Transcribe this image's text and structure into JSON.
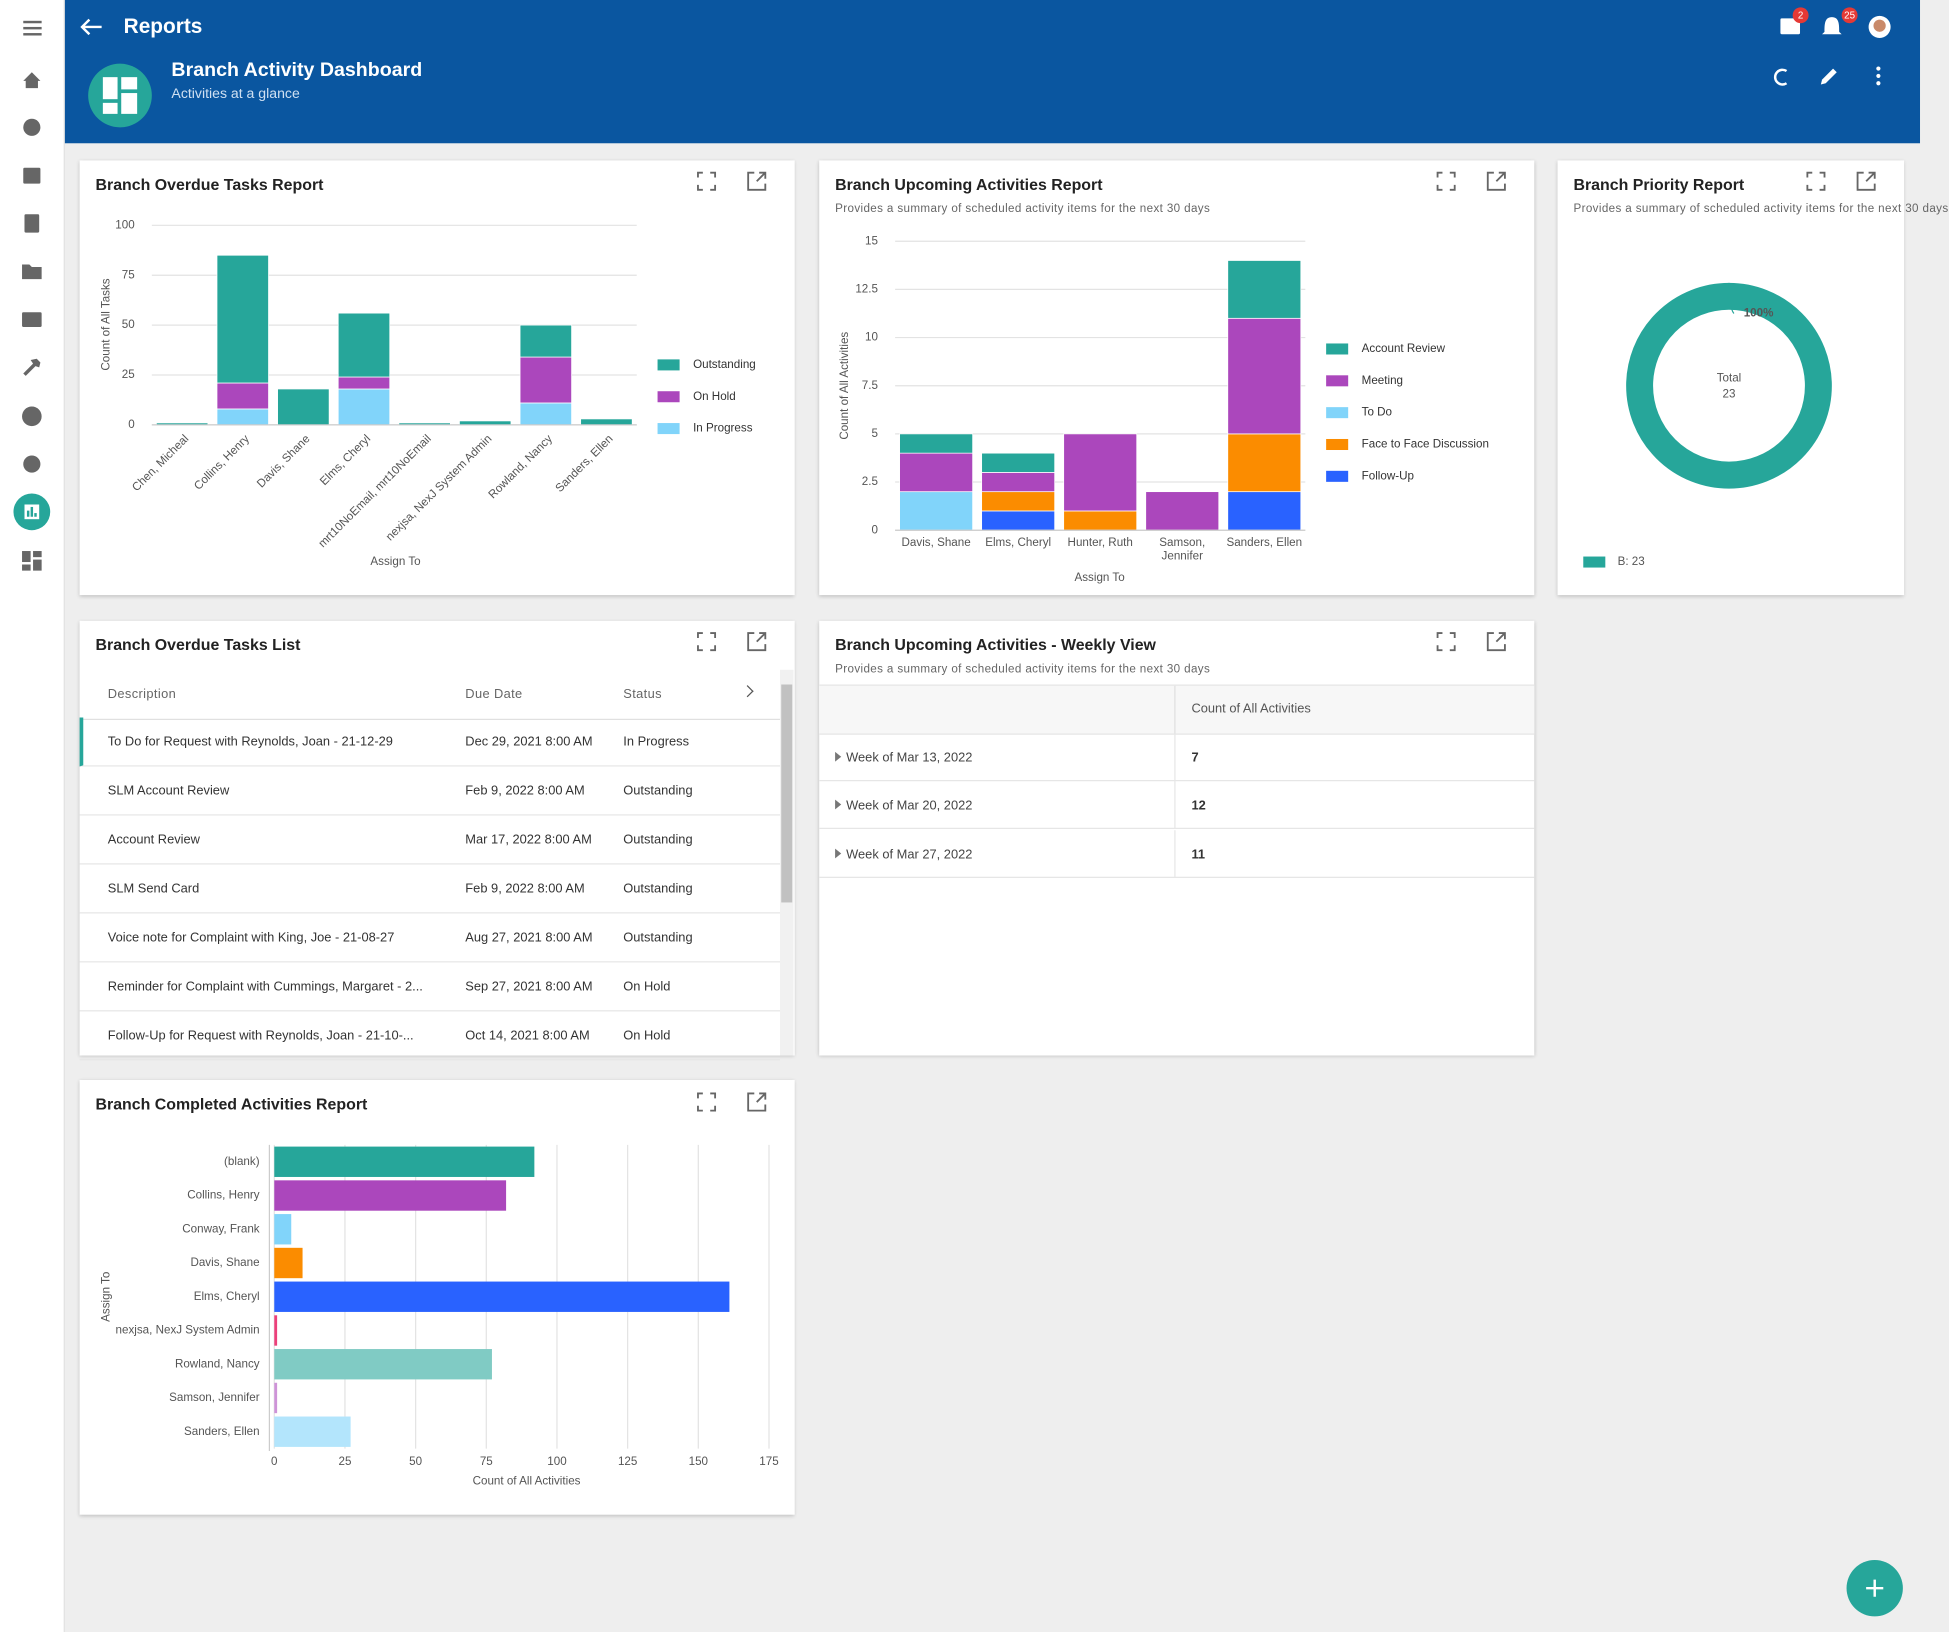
{
  "app": {
    "title": "Reports",
    "badges": {
      "messages": 2,
      "notifications": 25
    }
  },
  "dashboard": {
    "title": "Branch Activity Dashboard",
    "subtitle": "Activities at a glance"
  },
  "chart_data": [
    {
      "type": "bar",
      "stacked": true,
      "title": "Branch Overdue Tasks Report",
      "ylabel": "Count of All Tasks",
      "xlabel": "Assign To",
      "categories": [
        "Chen, Micheal",
        "Collins, Henry",
        "Davis, Shane",
        "Elms, Cheryl",
        "mrt10NoEmail, mrt10NoEmail",
        "nexjsa, NexJ System Admin",
        "Rowland, Nancy",
        "Sanders, Ellen"
      ],
      "series": [
        {
          "name": "Outstanding",
          "color": "#26a69a",
          "values": [
            1,
            64,
            18,
            32,
            1,
            2,
            16,
            3
          ]
        },
        {
          "name": "On Hold",
          "color": "#ab47bc",
          "values": [
            0,
            13,
            0,
            6,
            0,
            0,
            23,
            0
          ]
        },
        {
          "name": "In Progress",
          "color": "#81d4fa",
          "values": [
            0,
            8,
            0,
            18,
            0,
            0,
            11,
            0
          ]
        }
      ],
      "ylim": [
        0,
        100
      ],
      "yticks": [
        0,
        25,
        50,
        75,
        100
      ],
      "grid": true,
      "legend": "right"
    },
    {
      "type": "bar",
      "stacked": true,
      "title": "Branch Upcoming Activities Report",
      "subtitle": "Provides a summary of scheduled activity items for the next 30 days",
      "ylabel": "Count of All Activities",
      "xlabel": "Assign To",
      "categories": [
        "Davis, Shane",
        "Elms, Cheryl",
        "Hunter, Ruth",
        "Samson, Jennifer",
        "Sanders, Ellen"
      ],
      "series": [
        {
          "name": "Account Review",
          "color": "#26a69a",
          "values": [
            1,
            1,
            0,
            0,
            3
          ]
        },
        {
          "name": "Meeting",
          "color": "#ab47bc",
          "values": [
            2,
            1,
            4,
            2,
            6
          ]
        },
        {
          "name": "To Do",
          "color": "#81d4fa",
          "values": [
            2,
            0,
            0,
            0,
            0
          ]
        },
        {
          "name": "Face to Face Discussion",
          "color": "#fb8c00",
          "values": [
            0,
            1,
            1,
            0,
            3
          ]
        },
        {
          "name": "Follow-Up",
          "color": "#2962ff",
          "values": [
            0,
            1,
            0,
            0,
            2
          ]
        }
      ],
      "ylim": [
        0,
        15
      ],
      "yticks": [
        0,
        2.5,
        5,
        7.5,
        10,
        12.5,
        15
      ],
      "grid": true,
      "legend": "right"
    },
    {
      "type": "pie",
      "donut": true,
      "title": "Branch Priority Report",
      "subtitle": "Provides a summary of scheduled activity items for the next 30 days",
      "center_label": "Total",
      "total": 23,
      "categories": [
        "B"
      ],
      "values": [
        23
      ],
      "colors": [
        "#26a69a"
      ],
      "shares": [
        100
      ],
      "share_labels": [
        "100%"
      ],
      "legend_labels": [
        "B: 23"
      ],
      "legend": "bottom-left"
    },
    {
      "type": "bar",
      "orientation": "horizontal",
      "title": "Branch Completed Activities Report",
      "xlabel": "Count of All Activities",
      "ylabel": "Assign To",
      "categories": [
        "(blank)",
        "Collins, Henry",
        "Conway, Frank",
        "Davis, Shane",
        "Elms, Cheryl",
        "nexjsa, NexJ System Admin",
        "Rowland, Nancy",
        "Samson, Jennifer",
        "Sanders, Ellen"
      ],
      "values": [
        92,
        82,
        6,
        10,
        161,
        1,
        77,
        1,
        27
      ],
      "colors": [
        "#26a69a",
        "#ab47bc",
        "#81d4fa",
        "#fb8c00",
        "#2962ff",
        "#ec407a",
        "#80cbc4",
        "#ce93d8",
        "#b3e5fc"
      ],
      "xlim": [
        0,
        175
      ],
      "xticks": [
        0,
        25,
        50,
        75,
        100,
        125,
        150,
        175
      ],
      "grid": true
    }
  ],
  "tasks_list": {
    "title": "Branch Overdue Tasks List",
    "columns": [
      "Description",
      "Due Date",
      "Status"
    ],
    "rows": [
      [
        "To Do for Request with Reynolds, Joan - 21-12-29",
        "Dec 29, 2021 8:00 AM",
        "In Progress"
      ],
      [
        "SLM Account Review",
        "Feb 9, 2022 8:00 AM",
        "Outstanding"
      ],
      [
        "Account Review",
        "Mar 17, 2022 8:00 AM",
        "Outstanding"
      ],
      [
        "SLM Send Card",
        "Feb 9, 2022 8:00 AM",
        "Outstanding"
      ],
      [
        "Voice note for Complaint with King, Joe - 21-08-27",
        "Aug 27, 2021 8:00 AM",
        "Outstanding"
      ],
      [
        "Reminder for Complaint with Cummings, Margaret - 2...",
        "Sep 27, 2021 8:00 AM",
        "On Hold"
      ],
      [
        "Follow-Up for Request with Reynolds, Joan - 21-10-...",
        "Oct 14, 2021 8:00 AM",
        "On Hold"
      ]
    ]
  },
  "weekly_view": {
    "title": "Branch Upcoming Activities - Weekly View",
    "subtitle": "Provides a summary of scheduled activity items for the next 30 days",
    "column": "Count of All Activities",
    "rows": [
      {
        "week": "Week of Mar 13, 2022",
        "count": 7
      },
      {
        "week": "Week of Mar 20, 2022",
        "count": 12
      },
      {
        "week": "Week of Mar 27, 2022",
        "count": 11
      }
    ]
  }
}
